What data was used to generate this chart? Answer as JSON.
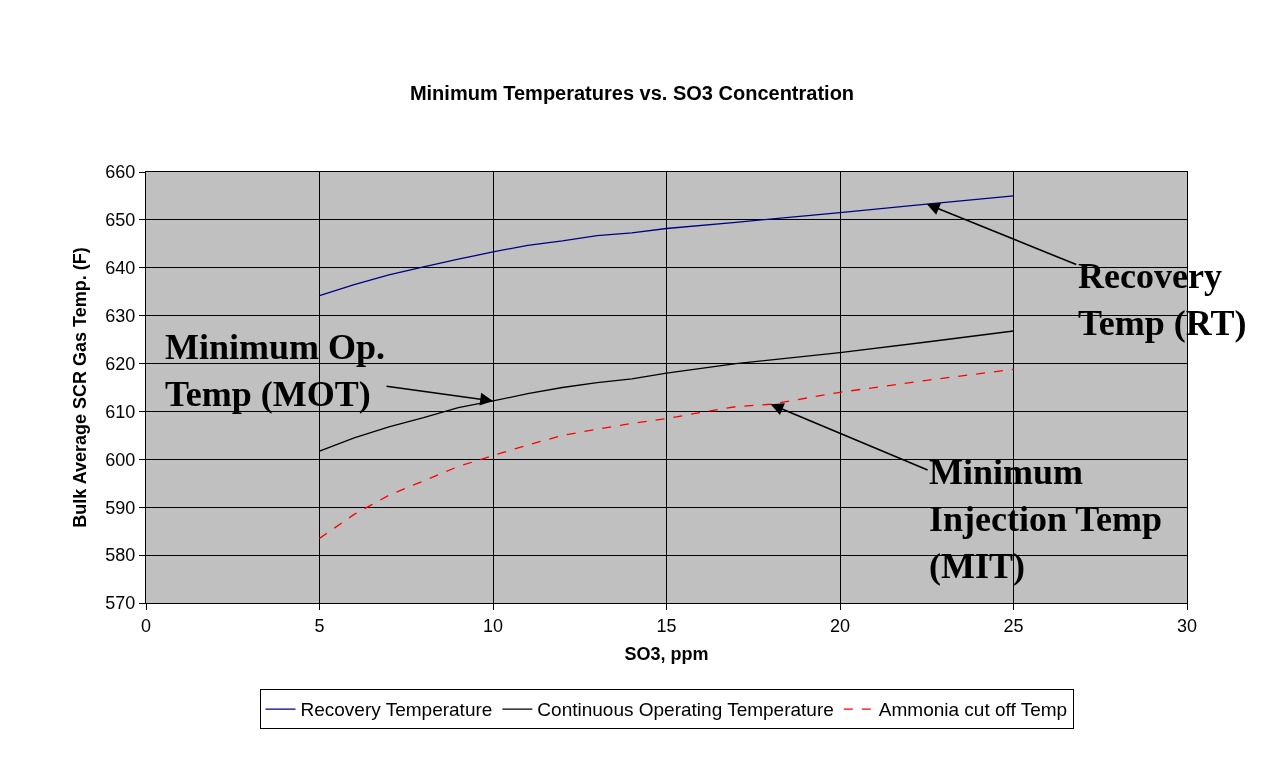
{
  "chart_data": {
    "type": "line",
    "title": "Minimum Temperatures vs. SO3 Concentration",
    "xlabel": "SO3, ppm",
    "ylabel": "Bulk Average SCR Gas Temp. (F)",
    "xlim": [
      0,
      30
    ],
    "xticks": [
      0,
      5,
      10,
      15,
      20,
      25,
      30
    ],
    "ylim": [
      570,
      660
    ],
    "yticks": [
      570,
      580,
      590,
      600,
      610,
      620,
      630,
      640,
      650,
      660
    ],
    "grid": true,
    "legend": "bottom",
    "marker": "none",
    "series": [
      {
        "name": "Recovery Temperature",
        "color": "#000080",
        "line_style": "solid",
        "x": [
          5,
          6,
          7,
          8,
          9,
          10,
          11,
          12,
          13,
          14,
          15,
          17,
          20,
          22.5,
          25
        ],
        "values": [
          634.2,
          636.5,
          638.5,
          640.2,
          641.8,
          643.3,
          644.7,
          645.6,
          646.7,
          647.3,
          648.2,
          649.5,
          651.5,
          653.3,
          655
        ]
      },
      {
        "name": "Continuous Operating Temperature",
        "color": "#000000",
        "line_style": "solid",
        "x": [
          5,
          6,
          7,
          8,
          9,
          10,
          11,
          12,
          13,
          14,
          15,
          17,
          20,
          22.5,
          25
        ],
        "values": [
          601.7,
          604.5,
          606.8,
          608.7,
          610.8,
          612.2,
          613.7,
          615,
          616,
          616.8,
          618,
          620,
          622.3,
          624.5,
          626.8
        ]
      },
      {
        "name": "Ammonia cut off Temp",
        "color": "#ff0000",
        "line_style": "dashed",
        "x": [
          5,
          6,
          7,
          8,
          9,
          10,
          11,
          12,
          13,
          14,
          15,
          16,
          17,
          18,
          20,
          22.5,
          25
        ],
        "values": [
          583.5,
          588.5,
          592.5,
          595.5,
          598.5,
          600.8,
          603,
          605,
          606.3,
          607.5,
          608.5,
          609.8,
          611,
          611.5,
          614,
          616.5,
          618.8
        ]
      }
    ],
    "annotations": [
      {
        "text": "Recovery\nTemp (RT)",
        "x": 22.5,
        "y": 653.3
      },
      {
        "text": "Minimum Op.\nTemp (MOT)",
        "x": 10,
        "y": 612.2
      },
      {
        "text": "Minimum\nInjection Temp\n(MIT)",
        "x": 18,
        "y": 611.5
      }
    ]
  }
}
